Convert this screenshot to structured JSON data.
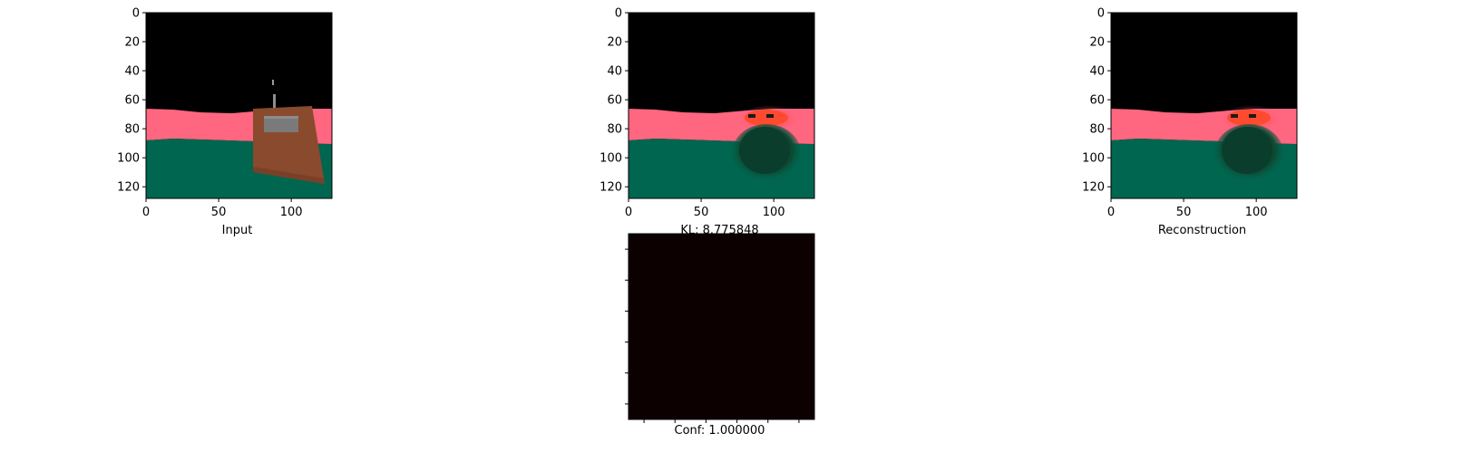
{
  "chart_data": [
    {
      "type": "image",
      "title": "",
      "xlabel": "Input",
      "ylabel": "",
      "xlim": [
        0,
        128
      ],
      "ylim": [
        128,
        0
      ],
      "xticks": [
        0,
        50,
        100
      ],
      "yticks": [
        0,
        20,
        40,
        60,
        80,
        100,
        120
      ],
      "colors": {
        "sky": "#000000",
        "wall": "#ff6680",
        "floor": "#00664f",
        "box": "#8a4a2e",
        "box_panel": "#7a7a7a"
      }
    },
    {
      "type": "image",
      "title": "",
      "xlabel": "KL: 8.775848",
      "ylabel": "",
      "xlim": [
        0,
        128
      ],
      "ylim": [
        128,
        0
      ],
      "xticks": [
        0,
        50,
        100
      ],
      "yticks": [
        0,
        20,
        40,
        60,
        80,
        100,
        120
      ],
      "colors": {
        "sky": "#000000",
        "wall": "#ff6680",
        "floor": "#00664f",
        "blob_top": "#ff4a30",
        "blob_body": "#0b3d2c"
      }
    },
    {
      "type": "image",
      "title": "",
      "xlabel": "Reconstruction",
      "ylabel": "",
      "xlim": [
        0,
        128
      ],
      "ylim": [
        128,
        0
      ],
      "xticks": [
        0,
        50,
        100
      ],
      "yticks": [
        0,
        20,
        40,
        60,
        80,
        100,
        120
      ],
      "colors": {
        "sky": "#000000",
        "wall": "#ff6680",
        "floor": "#00664f",
        "blob_top": "#ff4a30",
        "blob_body": "#0b3d2c"
      }
    },
    {
      "type": "heatmap",
      "title": "",
      "xlabel": "Conf: 1.000000",
      "ylabel": "",
      "values": [
        [
          1.0
        ]
      ],
      "xticks": 6,
      "yticks": 6,
      "colors": {
        "fill": "#0c0000"
      }
    }
  ]
}
